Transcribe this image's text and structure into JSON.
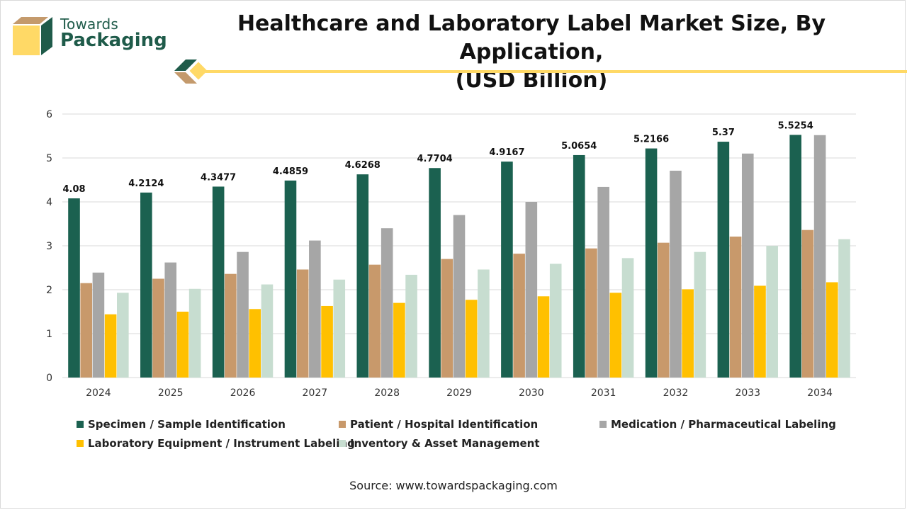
{
  "brand": {
    "line1": "Towards",
    "line2": "Packaging"
  },
  "title_line1": "Healthcare and Laboratory Label Market Size, By Application,",
  "title_line2": "(USD Billion)",
  "source": "Source: www.towardspackaging.com",
  "colors": {
    "specimen": "#1b6150",
    "patient": "#c8996b",
    "medication": "#a6a6a6",
    "equipment": "#ffc000",
    "inventory": "#c7ddd0",
    "grid": "#d9d9d9",
    "brand_dark": "#1f5b4a",
    "brand_tan": "#c49a6c",
    "brand_yellow": "#ffd966"
  },
  "chart_data": {
    "type": "bar",
    "categories": [
      "2024",
      "2025",
      "2026",
      "2027",
      "2028",
      "2029",
      "2030",
      "2031",
      "2032",
      "2033",
      "2034"
    ],
    "ylim": [
      0,
      6
    ],
    "yticks": [
      0,
      1,
      2,
      3,
      4,
      5,
      6
    ],
    "grid": true,
    "legend_position": "bottom",
    "series": [
      {
        "name": "Specimen / Sample Identification",
        "color_key": "specimen",
        "values": [
          4.08,
          4.2124,
          4.3477,
          4.4859,
          4.6268,
          4.7704,
          4.9167,
          5.0654,
          5.2166,
          5.37,
          5.5254
        ],
        "labels": [
          "4.08",
          "4.2124",
          "4.3477",
          "4.4859",
          "4.6268",
          "4.7704",
          "4.9167",
          "5.0654",
          "5.2166",
          "5.37",
          "5.5254"
        ]
      },
      {
        "name": "Patient / Hospital Identification",
        "color_key": "patient",
        "values": [
          2.15,
          2.25,
          2.36,
          2.46,
          2.57,
          2.7,
          2.82,
          2.94,
          3.07,
          3.21,
          3.36
        ]
      },
      {
        "name": "Medication / Pharmaceutical Labeling",
        "color_key": "medication",
        "values": [
          2.39,
          2.62,
          2.86,
          3.12,
          3.4,
          3.7,
          4.0,
          4.34,
          4.71,
          5.1,
          5.52
        ]
      },
      {
        "name": "Laboratory Equipment / Instrument Labeling",
        "color_key": "equipment",
        "values": [
          1.44,
          1.5,
          1.56,
          1.63,
          1.7,
          1.77,
          1.85,
          1.93,
          2.01,
          2.09,
          2.17
        ]
      },
      {
        "name": "Inventory & Asset Management",
        "color_key": "inventory",
        "values": [
          1.93,
          2.02,
          2.12,
          2.23,
          2.34,
          2.46,
          2.59,
          2.72,
          2.86,
          3.0,
          3.15
        ]
      }
    ]
  }
}
